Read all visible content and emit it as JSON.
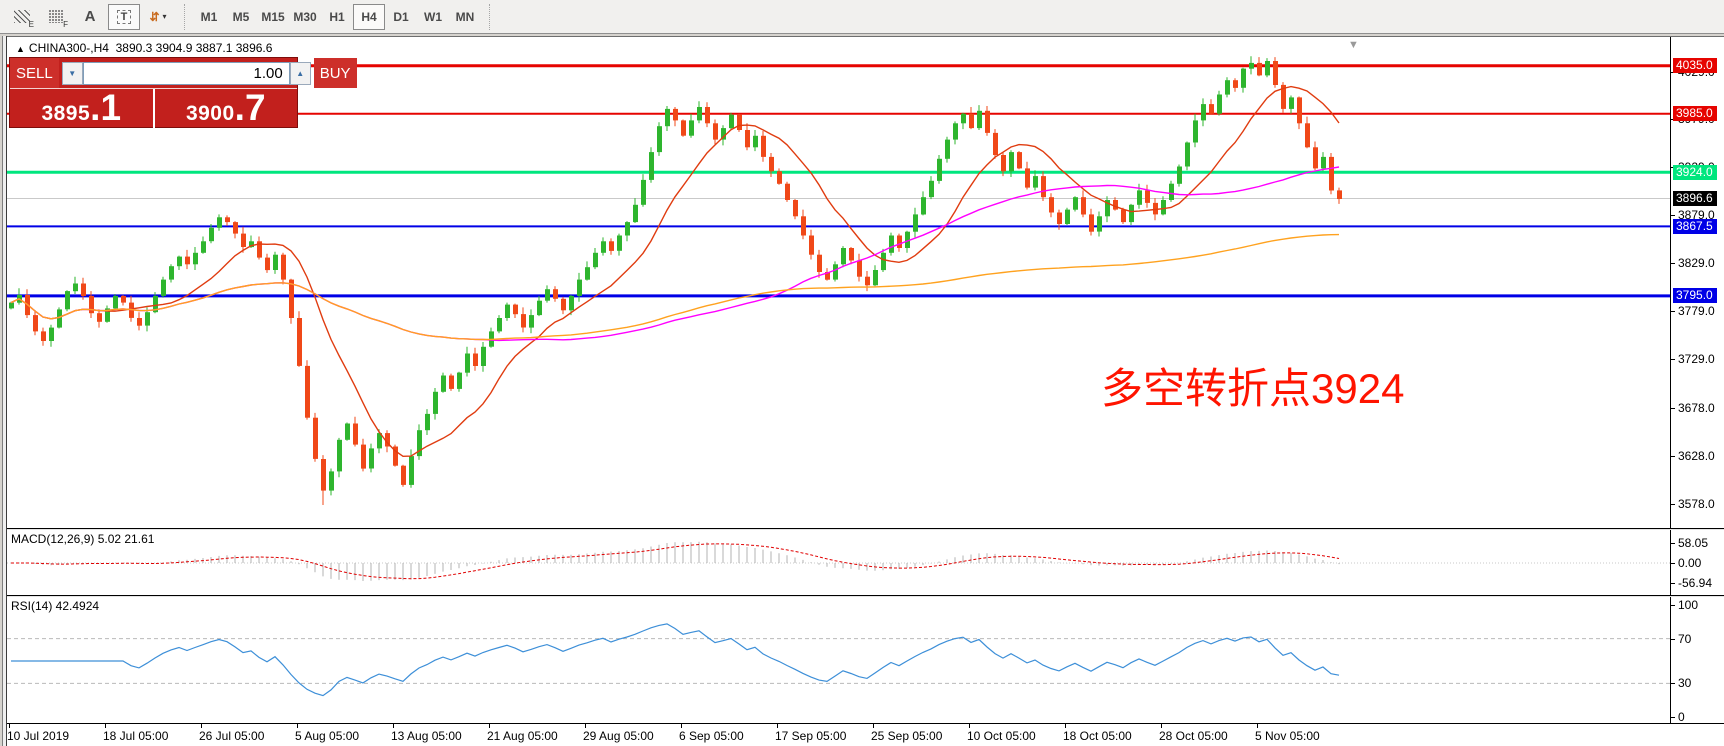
{
  "toolbar": {
    "icons": [
      {
        "name": "pattern-e-icon",
        "kind": "hatch",
        "sub": "E",
        "active": false
      },
      {
        "name": "grid-f-icon",
        "kind": "dots",
        "sub": "F",
        "active": false
      },
      {
        "name": "text-label-icon",
        "kind": "glyph",
        "glyph": "A",
        "active": false
      },
      {
        "name": "textbox-t-icon",
        "kind": "tbox",
        "glyph": "T",
        "active": true
      },
      {
        "name": "sort-arrows-icon",
        "kind": "arrows",
        "glyph": "⇵",
        "caret": "▾",
        "active": false
      }
    ],
    "timeframes": [
      "M1",
      "M5",
      "M15",
      "M30",
      "H1",
      "H4",
      "D1",
      "W1",
      "MN"
    ],
    "active_timeframe": "H4"
  },
  "header": {
    "icon": "▲",
    "symbol": "CHINA300-,H4",
    "ohlc": "3890.3 3904.9 3887.1 3896.6"
  },
  "trade": {
    "sell_label": "SELL",
    "buy_label": "BUY",
    "volume": "1.00",
    "down_icon": "▼",
    "up_icon": "▲",
    "sell_price": {
      "main": "3895",
      "frac": ".1"
    },
    "buy_price": {
      "main": "3900",
      "frac": ".7"
    }
  },
  "chart": {
    "annotation": "多空转折点3924",
    "annotation_color": "#ff1400",
    "scroll_end_icon": "▼",
    "levels": [
      {
        "label": "4035.0",
        "price": 4035.0,
        "color": "#e60400",
        "line_width": 3
      },
      {
        "label": "3985.0",
        "price": 3985.0,
        "color": "#e60400",
        "line_width": 2
      },
      {
        "label": "3924.0",
        "price": 3924.0,
        "color": "#00e67e",
        "line_width": 3
      },
      {
        "label": "3867.5",
        "price": 3867.5,
        "color": "#0000e6",
        "line_width": 2
      },
      {
        "label": "3795.0",
        "price": 3795.0,
        "color": "#0000e6",
        "line_width": 3
      }
    ],
    "current_price_label": "3896.6",
    "current_price_badge_color": "#000000",
    "axis_ticks": [
      {
        "label": "4029.0",
        "price": 4029.0
      },
      {
        "label": "3979.0",
        "price": 3979.0
      },
      {
        "label": "3929.0",
        "price": 3929.0
      },
      {
        "label": "3879.0",
        "price": 3879.0
      },
      {
        "label": "3829.0",
        "price": 3829.0
      },
      {
        "label": "3779.0",
        "price": 3779.0
      },
      {
        "label": "3729.0",
        "price": 3729.0
      },
      {
        "label": "3678.0",
        "price": 3678.0
      },
      {
        "label": "3628.0",
        "price": 3628.0
      },
      {
        "label": "3578.0",
        "price": 3578.0
      }
    ],
    "x_labels": [
      "10 Jul 2019",
      "18 Jul 05:00",
      "26 Jul 05:00",
      "5 Aug 05:00",
      "13 Aug 05:00",
      "21 Aug 05:00",
      "29 Aug 05:00",
      "6 Sep 05:00",
      "17 Sep 05:00",
      "25 Sep 05:00",
      "10 Oct 05:00",
      "18 Oct 05:00",
      "28 Oct 05:00",
      "5 Nov 05:00"
    ]
  },
  "macd": {
    "label": "MACD(12,26,9) 5.02 21.61",
    "axis": [
      {
        "label": "58.05",
        "value": 58.05
      },
      {
        "label": "0.00",
        "value": 0.0
      },
      {
        "label": "-56.94",
        "value": -56.94
      }
    ]
  },
  "rsi": {
    "label": "RSI(14) 42.4924",
    "axis": [
      {
        "label": "100",
        "value": 100
      },
      {
        "label": "70",
        "value": 70
      },
      {
        "label": "30",
        "value": 30
      },
      {
        "label": "0",
        "value": 0
      }
    ],
    "guide_levels": [
      70,
      30
    ]
  },
  "chart_data": {
    "type": "candlestick",
    "symbol": "CHINA300-",
    "timeframe": "H4",
    "current_bar": {
      "open": 3890.3,
      "high": 3904.9,
      "low": 3887.1,
      "close": 3896.6
    },
    "y_range": [
      3553,
      4065
    ],
    "first_open": 3782,
    "current_price": 3896.6,
    "closes": [
      3788,
      3796,
      3775,
      3758,
      3748,
      3762,
      3781,
      3800,
      3808,
      3795,
      3777,
      3768,
      3782,
      3795,
      3788,
      3772,
      3764,
      3778,
      3795,
      3812,
      3826,
      3836,
      3828,
      3840,
      3852,
      3866,
      3877,
      3872,
      3860,
      3846,
      3852,
      3835,
      3822,
      3838,
      3812,
      3772,
      3722,
      3668,
      3625,
      3592,
      3612,
      3645,
      3662,
      3640,
      3615,
      3636,
      3652,
      3638,
      3618,
      3598,
      3628,
      3655,
      3672,
      3695,
      3712,
      3698,
      3715,
      3735,
      3722,
      3742,
      3758,
      3772,
      3786,
      3776,
      3762,
      3775,
      3790,
      3802,
      3792,
      3780,
      3795,
      3812,
      3825,
      3840,
      3852,
      3842,
      3858,
      3872,
      3890,
      3916,
      3945,
      3972,
      3990,
      3978,
      3962,
      3978,
      3992,
      3975,
      3958,
      3970,
      3984,
      3968,
      3950,
      3962,
      3940,
      3925,
      3912,
      3895,
      3878,
      3858,
      3838,
      3820,
      3812,
      3828,
      3845,
      3832,
      3815,
      3806,
      3822,
      3840,
      3858,
      3845,
      3862,
      3880,
      3898,
      3915,
      3938,
      3958,
      3975,
      3985,
      3970,
      3988,
      3965,
      3942,
      3925,
      3945,
      3928,
      3908,
      3920,
      3898,
      3882,
      3870,
      3885,
      3898,
      3880,
      3862,
      3878,
      3895,
      3885,
      3872,
      3890,
      3905,
      3892,
      3880,
      3895,
      3912,
      3930,
      3955,
      3978,
      3995,
      3985,
      4005,
      4020,
      4012,
      4032,
      4038,
      4025,
      4040,
      4015,
      3990,
      4002,
      3975,
      3950,
      3928,
      3940,
      3905,
      3896
    ],
    "wick_overrides": [
      [
        39,
        "low",
        3577
      ],
      [
        157,
        "high",
        4043
      ]
    ],
    "colors": {
      "up": "#2eb52e",
      "down": "#f04818",
      "current_line": "#c9c9c9",
      "macd_hist": "#b3b3b3",
      "macd_signal": "#e00000",
      "rsi_line": "#3d8fd8",
      "guide": "#b9b9b9"
    },
    "indicators": {
      "ma": [
        {
          "period": 12,
          "color": "#e03c10"
        },
        {
          "period": 60,
          "color": "#ff00ff"
        },
        {
          "period": 140,
          "color": "#ffa21f"
        }
      ],
      "macd": {
        "params": [
          12,
          26,
          9
        ],
        "last_values": [
          5.02,
          21.61
        ],
        "axis_range": [
          -56.94,
          58.05
        ]
      },
      "rsi": {
        "period": 14,
        "last_value": 42.4924
      }
    }
  }
}
